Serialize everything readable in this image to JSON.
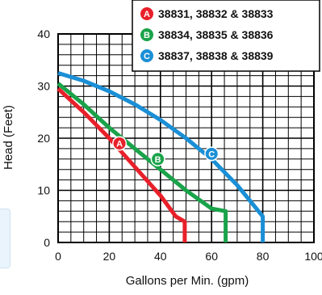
{
  "chart_data": {
    "type": "line",
    "title": "",
    "xlabel": "Gallons per Min. (gpm)",
    "ylabel": "Head (Feet)",
    "xlim": [
      0,
      100
    ],
    "ylim": [
      0,
      40
    ],
    "x_ticks": [
      0,
      20,
      40,
      60,
      80,
      100
    ],
    "y_ticks": [
      0,
      10,
      20,
      30,
      40
    ],
    "grid": true,
    "legend_position": "top-right",
    "series": [
      {
        "id": "A",
        "name": "38831, 38832 & 38833",
        "color": "#e8202a",
        "points": [
          [
            0,
            29.5
          ],
          [
            10,
            25
          ],
          [
            20,
            20
          ],
          [
            30,
            14.5
          ],
          [
            40,
            9
          ],
          [
            46,
            5
          ],
          [
            49.5,
            4
          ],
          [
            49.5,
            0
          ]
        ]
      },
      {
        "id": "B",
        "name": "38834, 38835 & 38836",
        "color": "#1aa34a",
        "points": [
          [
            0,
            30.5
          ],
          [
            10,
            26.5
          ],
          [
            20,
            22
          ],
          [
            30,
            18
          ],
          [
            40,
            14
          ],
          [
            50,
            10
          ],
          [
            60,
            6.5
          ],
          [
            65.5,
            6
          ],
          [
            65.5,
            0
          ]
        ]
      },
      {
        "id": "C",
        "name": "38837, 38838 & 38839",
        "color": "#1a8fd6",
        "points": [
          [
            0,
            32.5
          ],
          [
            10,
            31
          ],
          [
            20,
            29
          ],
          [
            30,
            26.5
          ],
          [
            40,
            23.5
          ],
          [
            50,
            20
          ],
          [
            60,
            16
          ],
          [
            70,
            11
          ],
          [
            75,
            8
          ],
          [
            80,
            5
          ],
          [
            80,
            0
          ]
        ]
      }
    ],
    "curve_labels": [
      {
        "id": "A",
        "x": 24,
        "y": 19
      },
      {
        "id": "B",
        "x": 39,
        "y": 16
      },
      {
        "id": "C",
        "x": 60,
        "y": 17
      }
    ]
  }
}
